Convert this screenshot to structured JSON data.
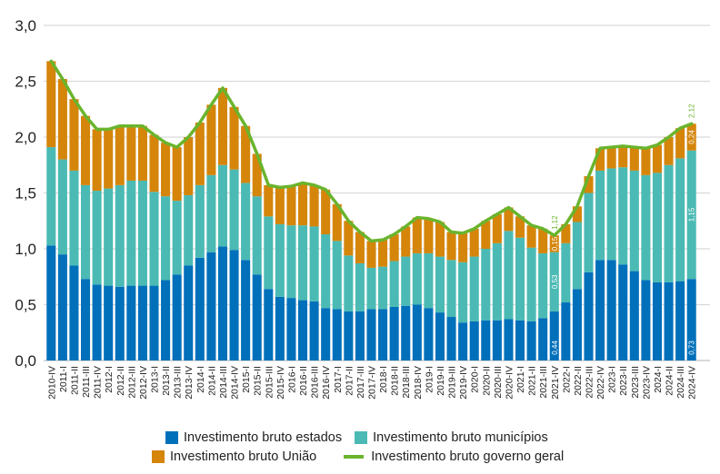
{
  "chart_data": {
    "type": "bar",
    "stacked": true,
    "title": "",
    "xlabel": "",
    "ylabel": "",
    "ylim": [
      0,
      3.0
    ],
    "yticks": [
      "0,0",
      "0,5",
      "1,0",
      "1,5",
      "2,0",
      "2,5",
      "3,0"
    ],
    "ytick_values": [
      0,
      0.5,
      1.0,
      1.5,
      2.0,
      2.5,
      3.0
    ],
    "grid": true,
    "legend_position": "bottom",
    "categories": [
      "2010-IV",
      "2011-I",
      "2011-II",
      "2011-III",
      "2011-IV",
      "2012-I",
      "2012-II",
      "2012-III",
      "2012-IV",
      "2013-I",
      "2013-II",
      "2013-III",
      "2013-IV",
      "2014-I",
      "2014-II",
      "2014-III",
      "2014-IV",
      "2015-I",
      "2015-II",
      "2015-III",
      "2015-IV",
      "2016-I",
      "2016-II",
      "2016-III",
      "2016-IV",
      "2017-I",
      "2017-II",
      "2017-III",
      "2017-IV",
      "2018-I",
      "2018-II",
      "2018-III",
      "2018-IV",
      "2019-I",
      "2019-II",
      "2019-III",
      "2019-IV",
      "2020-I",
      "2020-II",
      "2020-III",
      "2020-IV",
      "2021-I",
      "2021-II",
      "2021-III",
      "2021-IV",
      "2022-I",
      "2022-II",
      "2022-III",
      "2022-IV",
      "2023-I",
      "2023-II",
      "2023-III",
      "2023-IV",
      "2024-I",
      "2024-II",
      "2024-III",
      "2024-IV"
    ],
    "series": [
      {
        "name": "Investimento bruto estados",
        "kind": "bar",
        "color": "#0070ba",
        "values": [
          1.03,
          0.95,
          0.85,
          0.73,
          0.68,
          0.67,
          0.66,
          0.67,
          0.67,
          0.67,
          0.72,
          0.77,
          0.85,
          0.92,
          0.97,
          1.02,
          0.99,
          0.9,
          0.77,
          0.64,
          0.57,
          0.56,
          0.54,
          0.53,
          0.47,
          0.46,
          0.44,
          0.44,
          0.46,
          0.46,
          0.48,
          0.49,
          0.5,
          0.47,
          0.43,
          0.39,
          0.34,
          0.35,
          0.36,
          0.36,
          0.37,
          0.36,
          0.35,
          0.38,
          0.44,
          0.52,
          0.64,
          0.79,
          0.9,
          0.9,
          0.86,
          0.8,
          0.72,
          0.7,
          0.7,
          0.71,
          0.73
        ]
      },
      {
        "name": "Investimento bruto municípios",
        "kind": "bar",
        "color": "#4bbab4",
        "values": [
          0.88,
          0.85,
          0.85,
          0.84,
          0.84,
          0.87,
          0.91,
          0.94,
          0.94,
          0.84,
          0.75,
          0.66,
          0.63,
          0.65,
          0.69,
          0.73,
          0.72,
          0.69,
          0.7,
          0.65,
          0.65,
          0.65,
          0.67,
          0.67,
          0.66,
          0.61,
          0.5,
          0.43,
          0.37,
          0.38,
          0.41,
          0.44,
          0.46,
          0.49,
          0.5,
          0.51,
          0.54,
          0.58,
          0.64,
          0.69,
          0.79,
          0.74,
          0.66,
          0.58,
          0.53,
          0.53,
          0.6,
          0.71,
          0.8,
          0.82,
          0.87,
          0.9,
          0.94,
          0.98,
          1.05,
          1.1,
          1.15
        ]
      },
      {
        "name": "Investimento bruto União",
        "kind": "bar",
        "color": "#d4850a",
        "values": [
          0.77,
          0.72,
          0.64,
          0.62,
          0.55,
          0.53,
          0.53,
          0.49,
          0.49,
          0.51,
          0.48,
          0.48,
          0.52,
          0.56,
          0.63,
          0.69,
          0.56,
          0.51,
          0.38,
          0.28,
          0.33,
          0.35,
          0.38,
          0.37,
          0.4,
          0.33,
          0.31,
          0.28,
          0.24,
          0.24,
          0.24,
          0.27,
          0.32,
          0.31,
          0.31,
          0.25,
          0.26,
          0.25,
          0.25,
          0.26,
          0.21,
          0.19,
          0.2,
          0.22,
          0.15,
          0.17,
          0.14,
          0.15,
          0.2,
          0.19,
          0.19,
          0.21,
          0.24,
          0.25,
          0.25,
          0.27,
          0.24
        ]
      },
      {
        "name": "Investimento bruto governo geral",
        "kind": "line",
        "color": "#6ab42d",
        "values": [
          2.68,
          2.52,
          2.34,
          2.19,
          2.07,
          2.07,
          2.1,
          2.1,
          2.1,
          2.02,
          1.95,
          1.91,
          2.0,
          2.13,
          2.29,
          2.44,
          2.27,
          2.1,
          1.85,
          1.57,
          1.55,
          1.56,
          1.59,
          1.57,
          1.53,
          1.4,
          1.25,
          1.15,
          1.07,
          1.08,
          1.13,
          1.2,
          1.28,
          1.27,
          1.24,
          1.15,
          1.14,
          1.18,
          1.25,
          1.31,
          1.37,
          1.29,
          1.21,
          1.18,
          1.12,
          1.22,
          1.38,
          1.65,
          1.9,
          1.91,
          1.92,
          1.91,
          1.9,
          1.93,
          2.0,
          2.08,
          2.12
        ]
      }
    ],
    "annotations": [
      {
        "category": "2021-IV",
        "series": "Investimento bruto estados",
        "text": "0,44"
      },
      {
        "category": "2021-IV",
        "series": "Investimento bruto municípios",
        "text": "0,53"
      },
      {
        "category": "2021-IV",
        "series": "Investimento bruto União",
        "text": "0,15"
      },
      {
        "category": "2021-IV",
        "series": "Investimento bruto governo geral",
        "text": "1,12"
      },
      {
        "category": "2024-IV",
        "series": "Investimento bruto estados",
        "text": "0,73"
      },
      {
        "category": "2024-IV",
        "series": "Investimento bruto municípios",
        "text": "1,15"
      },
      {
        "category": "2024-IV",
        "series": "Investimento bruto União",
        "text": "0,24"
      },
      {
        "category": "2024-IV",
        "series": "Investimento bruto governo geral",
        "text": "2,12"
      }
    ]
  },
  "legend": {
    "row1": [
      {
        "label": "Investimento bruto estados",
        "color": "#0070ba",
        "kind": "square"
      },
      {
        "label": "Investimento bruto municípios",
        "color": "#4bbab4",
        "kind": "square"
      }
    ],
    "row2": [
      {
        "label": "Investimento bruto União",
        "color": "#d4850a",
        "kind": "square"
      },
      {
        "label": "Investimento bruto governo geral",
        "color": "#6ab42d",
        "kind": "line"
      }
    ]
  }
}
